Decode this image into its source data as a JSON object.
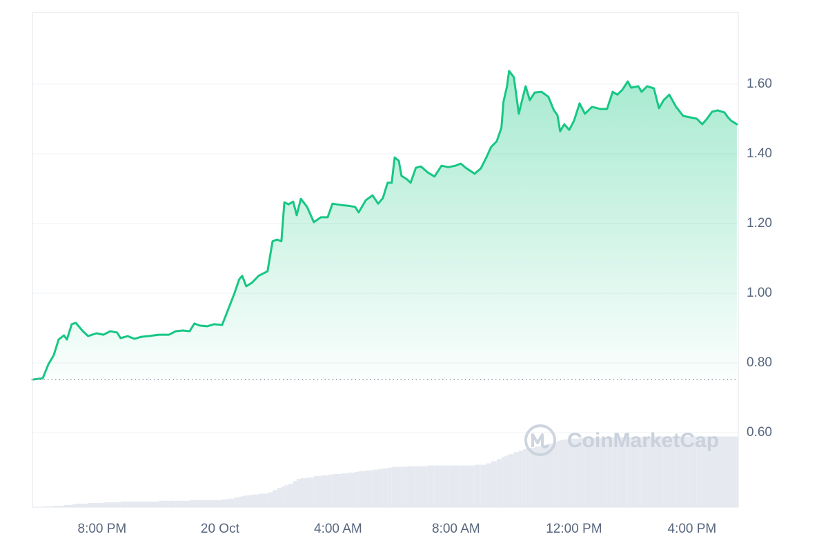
{
  "chart_data": {
    "type": "line",
    "x": [
      17.64,
      17.99,
      18.18,
      18.36,
      18.53,
      18.71,
      18.81,
      18.97,
      19.11,
      19.35,
      19.53,
      19.81,
      20.05,
      20.28,
      20.51,
      20.63,
      20.87,
      21.1,
      21.33,
      21.57,
      21.92,
      22.27,
      22.5,
      22.74,
      22.97,
      23.13,
      23.32,
      23.56,
      23.79,
      24.07,
      24.26,
      24.49,
      24.65,
      24.75,
      24.89,
      25.08,
      25.31,
      25.61,
      25.78,
      25.94,
      26.08,
      26.18,
      26.32,
      26.48,
      26.6,
      26.74,
      26.95,
      27.18,
      27.42,
      27.65,
      27.81,
      28.12,
      28.35,
      28.58,
      28.7,
      28.94,
      29.17,
      29.36,
      29.52,
      29.68,
      29.82,
      29.92,
      30.06,
      30.15,
      30.34,
      30.46,
      30.64,
      30.81,
      31.04,
      31.27,
      31.51,
      31.74,
      31.98,
      32.16,
      32.33,
      32.63,
      32.84,
      33.03,
      33.19,
      33.38,
      33.54,
      33.61,
      33.73,
      33.8,
      33.96,
      34.13,
      34.27,
      34.36,
      34.5,
      34.67,
      34.9,
      35.13,
      35.32,
      35.44,
      35.53,
      35.67,
      35.84,
      36.0,
      36.19,
      36.37,
      36.61,
      36.89,
      37.12,
      37.31,
      37.47,
      37.64,
      37.82,
      37.94,
      38.18,
      38.29,
      38.48,
      38.71,
      38.88,
      39.04,
      39.23,
      39.46,
      39.7,
      39.93,
      40.16,
      40.35,
      40.51,
      40.68,
      40.87,
      41.1,
      41.22,
      41.33,
      41.52
    ],
    "series": [
      {
        "color": "#16c784",
        "values": [
          0.752,
          0.756,
          0.796,
          0.822,
          0.867,
          0.879,
          0.867,
          0.911,
          0.915,
          0.891,
          0.877,
          0.885,
          0.881,
          0.891,
          0.887,
          0.871,
          0.877,
          0.869,
          0.875,
          0.877,
          0.881,
          0.881,
          0.891,
          0.893,
          0.891,
          0.913,
          0.907,
          0.905,
          0.911,
          0.909,
          0.95,
          1.0,
          1.04,
          1.05,
          1.02,
          1.03,
          1.05,
          1.063,
          1.149,
          1.154,
          1.149,
          1.261,
          1.255,
          1.263,
          1.224,
          1.271,
          1.248,
          1.204,
          1.218,
          1.218,
          1.257,
          1.253,
          1.251,
          1.248,
          1.232,
          1.267,
          1.281,
          1.257,
          1.273,
          1.317,
          1.317,
          1.39,
          1.38,
          1.337,
          1.327,
          1.317,
          1.36,
          1.364,
          1.347,
          1.335,
          1.366,
          1.362,
          1.366,
          1.372,
          1.36,
          1.343,
          1.358,
          1.39,
          1.42,
          1.436,
          1.475,
          1.55,
          1.594,
          1.638,
          1.62,
          1.515,
          1.564,
          1.594,
          1.554,
          1.576,
          1.578,
          1.564,
          1.525,
          1.511,
          1.465,
          1.485,
          1.469,
          1.495,
          1.545,
          1.515,
          1.535,
          1.529,
          1.529,
          1.578,
          1.57,
          1.584,
          1.608,
          1.59,
          1.594,
          1.578,
          1.594,
          1.588,
          1.531,
          1.554,
          1.57,
          1.535,
          1.509,
          1.505,
          1.501,
          1.485,
          1.501,
          1.521,
          1.525,
          1.519,
          1.505,
          1.495,
          1.485
        ]
      },
      {
        "color": "#e6eaf0",
        "axis": "y2",
        "values": [
          0,
          1,
          1,
          2,
          2,
          3,
          3,
          4,
          5,
          5,
          6,
          6,
          7,
          7,
          7,
          8,
          8,
          8,
          8,
          8,
          9,
          9,
          9,
          9,
          10,
          10,
          10,
          10,
          10,
          11,
          12,
          14,
          15,
          16,
          17,
          18,
          19,
          21,
          24,
          27,
          29,
          31,
          33,
          37,
          40,
          41,
          42,
          44,
          45,
          46,
          47,
          48,
          49,
          50,
          51,
          52,
          53,
          54,
          55,
          56,
          57,
          57,
          57,
          57,
          58,
          58,
          58,
          58,
          59,
          59,
          59,
          59,
          59,
          59,
          59,
          60,
          60,
          62,
          65,
          68,
          71,
          72,
          74,
          75,
          78,
          80,
          82,
          83,
          84,
          86,
          88,
          90,
          92,
          94,
          95,
          96,
          97,
          97,
          98,
          98,
          98,
          98,
          99,
          99,
          99,
          99,
          99,
          99,
          99,
          99,
          99,
          100,
          100,
          100,
          100,
          100,
          100,
          100,
          100,
          100,
          100,
          100,
          100,
          100,
          100,
          100,
          100
        ]
      }
    ],
    "xlim": [
      17.64,
      41.57
    ],
    "xticks": [
      {
        "value": 20,
        "label": "8:00 PM"
      },
      {
        "value": 24,
        "label": "20 Oct"
      },
      {
        "value": 28,
        "label": "4:00 AM"
      },
      {
        "value": 32,
        "label": "8:00 AM"
      },
      {
        "value": 36,
        "label": "12:00 PM"
      },
      {
        "value": 40,
        "label": "4:00 PM"
      }
    ],
    "ylim": [
      0.386,
      1.806
    ],
    "yticks": [
      {
        "value": 0.6,
        "label": "0.60"
      },
      {
        "value": 0.8,
        "label": "0.80"
      },
      {
        "value": 1.0,
        "label": "1.00"
      },
      {
        "value": 1.2,
        "label": "1.20"
      },
      {
        "value": 1.4,
        "label": "1.40"
      },
      {
        "value": 1.6,
        "label": "1.60"
      }
    ],
    "y2lim": [
      0,
      700
    ],
    "baseline": 0.752,
    "grid": true,
    "watermark": "CoinMarketCap"
  }
}
